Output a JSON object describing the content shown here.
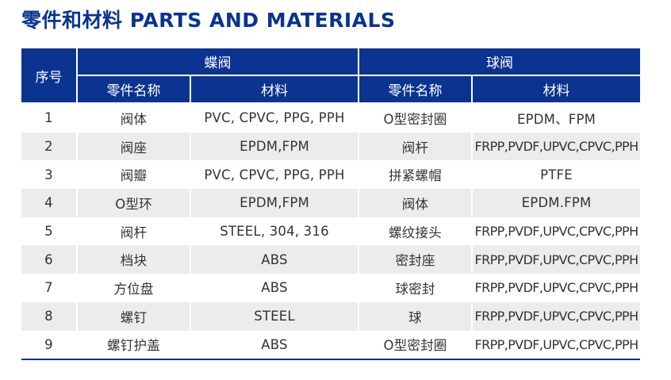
{
  "title": "零件和材料 PARTS AND MATERIALS",
  "headers": {
    "no": "序号",
    "butterfly": "蝶阀",
    "ball": "球阀",
    "part": "零件名称",
    "material": "材料"
  },
  "rows": [
    [
      "1",
      "阀体",
      "PVC, CPVC, PPG, PPH",
      "O型密封圈",
      "EPDM、FPM"
    ],
    [
      "2",
      "阀座",
      "EPDM,FPM",
      "阀杆",
      "FRPP,PVDF,UPVC,CPVC,PPH"
    ],
    [
      "3",
      "阀瓣",
      "PVC, CPVC, PPG, PPH",
      "拼紧螺帽",
      "PTFE"
    ],
    [
      "4",
      "O型环",
      "EPDM,FPM",
      "阀体",
      "EPDM.FPM"
    ],
    [
      "5",
      "阀杆",
      "STEEL, 304, 316",
      "螺纹接头",
      "FRPP,PVDF,UPVC,CPVC,PPH"
    ],
    [
      "6",
      "档块",
      "ABS",
      "密封座",
      "FRPP,PVDF,UPVC,CPVC,PPH"
    ],
    [
      "7",
      "方位盘",
      "ABS",
      "球密封",
      "FRPP,PVDF,UPVC,CPVC,PPH"
    ],
    [
      "8",
      "螺钉",
      "STEEL",
      "球",
      "FRPP,PVDF,UPVC,CPVC,PPH"
    ],
    [
      "9",
      "螺钉护盖",
      "ABS",
      "O型密封圈",
      "FRPP,PVDF,UPVC,CPVC,PPH"
    ]
  ],
  "colors": {
    "header": "#0b3390",
    "stripe": "#ececec"
  }
}
